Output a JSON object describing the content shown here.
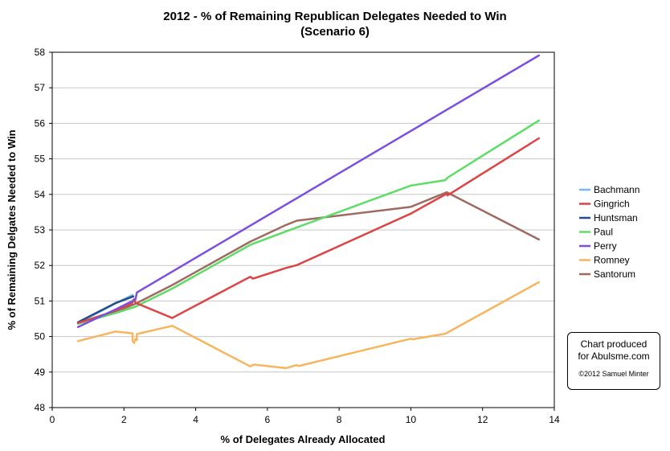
{
  "chart_data": {
    "type": "line",
    "title": "2012 - % of Remaining Republican Delegates Needed to Win",
    "subtitle": "(Scenario 6)",
    "xlabel": "% of Delegates Already Allocated",
    "ylabel": "% of Remaining Delgates Needed to Win",
    "xlim": [
      0,
      14
    ],
    "ylim": [
      48,
      58
    ],
    "xticks": [
      0,
      2,
      4,
      6,
      8,
      10,
      12,
      14
    ],
    "yticks": [
      48,
      49,
      50,
      51,
      52,
      53,
      54,
      55,
      56,
      57,
      58
    ],
    "grid": true,
    "legend_position": "right",
    "series": [
      {
        "name": "Bachmann",
        "color": "#7ab8f0",
        "points": [
          [
            0.72,
            50.38
          ],
          [
            1.76,
            50.93
          ],
          [
            2.24,
            51.17
          ]
        ]
      },
      {
        "name": "Gingrich",
        "color": "#dd4444",
        "points": [
          [
            0.72,
            50.38
          ],
          [
            1.76,
            50.72
          ],
          [
            2.22,
            50.93
          ],
          [
            2.28,
            51.05
          ],
          [
            2.32,
            50.95
          ],
          [
            3.35,
            50.52
          ],
          [
            3.38,
            50.54
          ],
          [
            5.52,
            51.68
          ],
          [
            5.6,
            51.63
          ],
          [
            6.52,
            51.93
          ],
          [
            6.82,
            52.01
          ],
          [
            10.0,
            53.46
          ],
          [
            11.0,
            54.02
          ],
          [
            11.02,
            53.97
          ],
          [
            13.57,
            55.58
          ]
        ]
      },
      {
        "name": "Huntsman",
        "color": "#244f8c",
        "points": [
          [
            0.72,
            50.4
          ],
          [
            1.76,
            50.94
          ],
          [
            2.26,
            51.13
          ]
        ]
      },
      {
        "name": "Paul",
        "color": "#5ddd66",
        "points": [
          [
            0.72,
            50.36
          ],
          [
            1.76,
            50.66
          ],
          [
            2.32,
            50.84
          ],
          [
            3.35,
            51.35
          ],
          [
            5.52,
            52.58
          ],
          [
            6.52,
            52.96
          ],
          [
            6.82,
            53.07
          ],
          [
            10.0,
            54.25
          ],
          [
            10.96,
            54.4
          ],
          [
            11.02,
            54.47
          ],
          [
            13.57,
            56.08
          ]
        ]
      },
      {
        "name": "Perry",
        "color": "#7b4fe0",
        "points": [
          [
            0.72,
            50.27
          ],
          [
            1.76,
            50.76
          ],
          [
            2.32,
            51.04
          ],
          [
            2.36,
            51.24
          ],
          [
            13.57,
            57.91
          ]
        ]
      },
      {
        "name": "Romney",
        "color": "#f7b560",
        "points": [
          [
            0.72,
            49.87
          ],
          [
            1.76,
            50.14
          ],
          [
            2.24,
            50.09
          ],
          [
            2.24,
            49.88
          ],
          [
            2.28,
            49.82
          ],
          [
            2.32,
            49.93
          ],
          [
            2.36,
            49.9
          ],
          [
            2.36,
            50.07
          ],
          [
            3.35,
            50.3
          ],
          [
            5.52,
            49.16
          ],
          [
            5.62,
            49.21
          ],
          [
            6.52,
            49.11
          ],
          [
            6.82,
            49.2
          ],
          [
            6.87,
            49.17
          ],
          [
            10.0,
            49.94
          ],
          [
            10.04,
            49.92
          ],
          [
            10.96,
            50.08
          ],
          [
            13.57,
            51.53
          ]
        ]
      },
      {
        "name": "Santorum",
        "color": "#9e6b63",
        "points": [
          [
            0.72,
            50.38
          ],
          [
            1.76,
            50.69
          ],
          [
            2.32,
            50.92
          ],
          [
            3.35,
            51.45
          ],
          [
            5.52,
            52.67
          ],
          [
            6.52,
            53.14
          ],
          [
            6.82,
            53.26
          ],
          [
            10.0,
            53.65
          ],
          [
            11.0,
            54.06
          ],
          [
            13.57,
            52.73
          ]
        ]
      }
    ]
  },
  "credit": {
    "line1": "Chart produced",
    "line2": "for Abulsme.com",
    "line3": "©2012 Samuel Minter"
  }
}
